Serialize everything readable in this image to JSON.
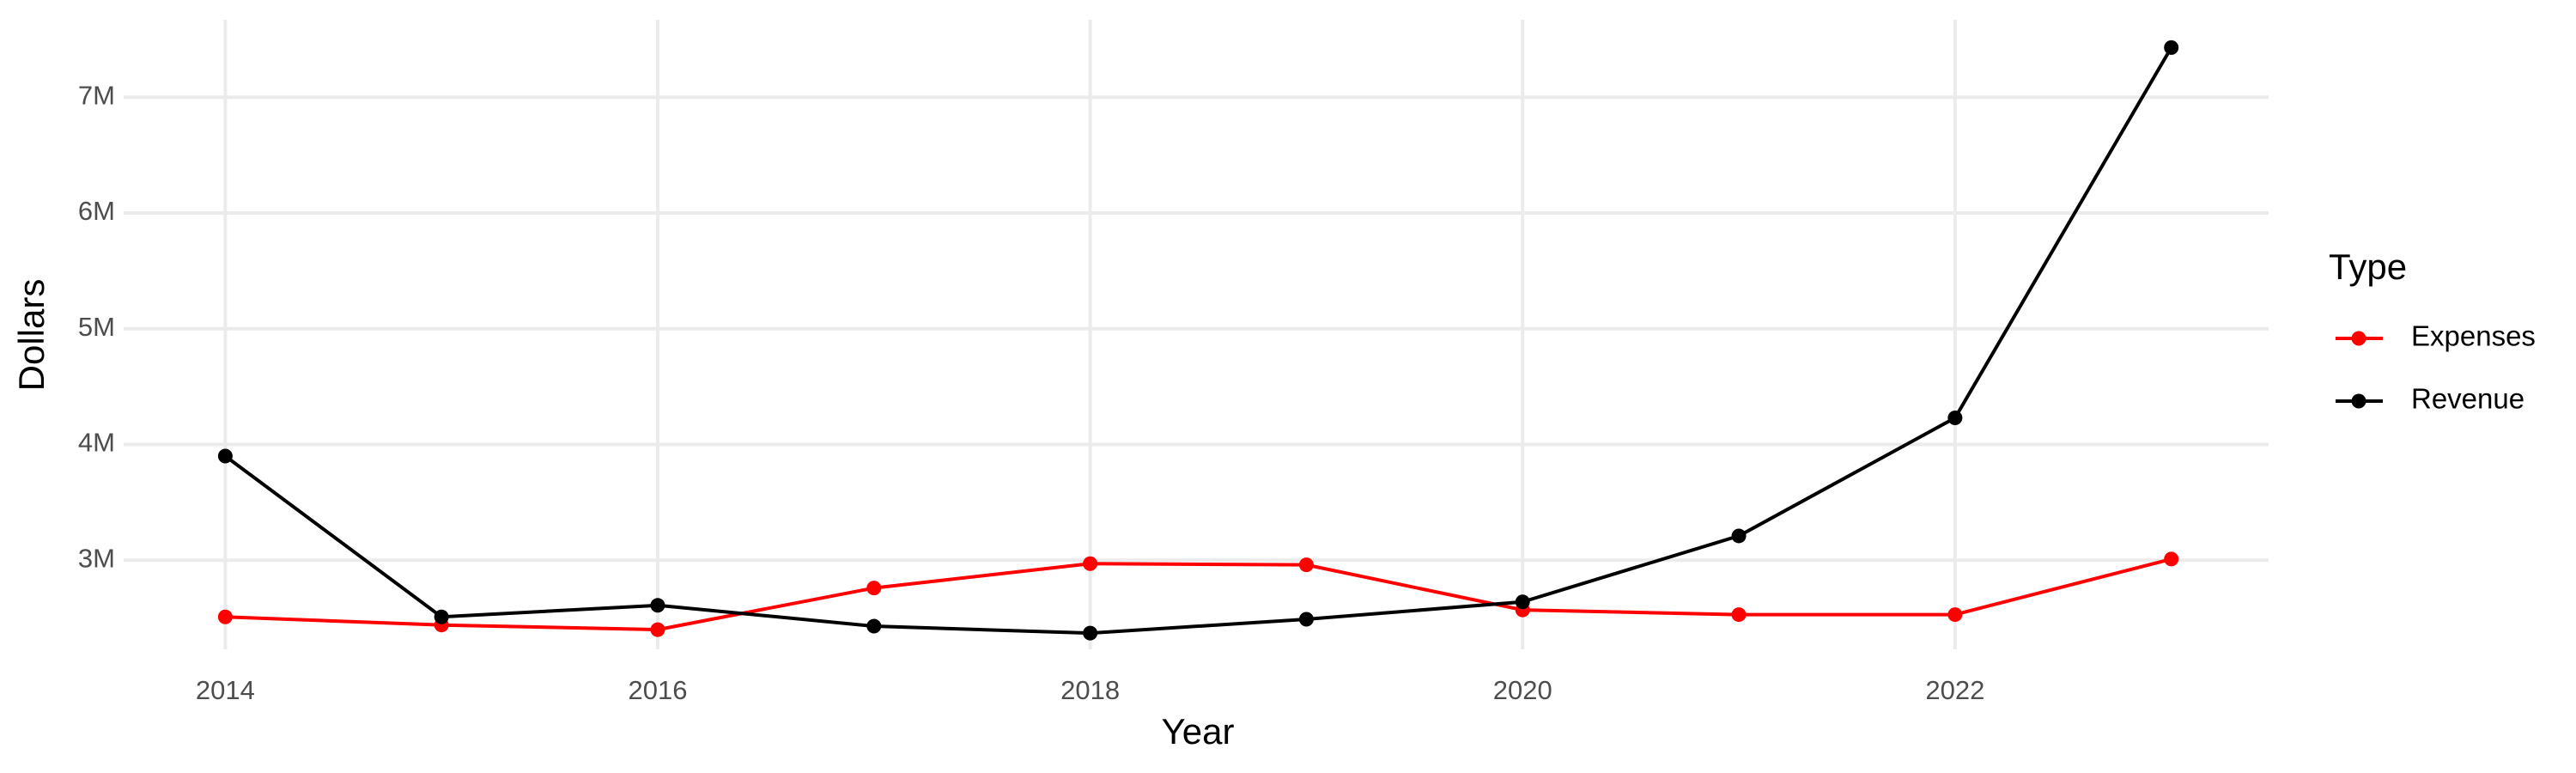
{
  "chart_data": {
    "type": "line",
    "x_label": "Year",
    "y_label": "Dollars",
    "legend_title": "Type",
    "legend": "right",
    "grid": true,
    "x": [
      2014,
      2015,
      2016,
      2017,
      2018,
      2019,
      2020,
      2021,
      2022,
      2023
    ],
    "series": [
      {
        "name": "Expenses",
        "color": "#ff0000",
        "values": [
          2510000,
          2440000,
          2400000,
          2760000,
          2970000,
          2960000,
          2570000,
          2530000,
          2530000,
          3010000
        ]
      },
      {
        "name": "Revenue",
        "color": "#000000",
        "values": [
          3900000,
          2510000,
          2610000,
          2430000,
          2370000,
          2490000,
          2640000,
          3210000,
          4230000,
          7430000
        ]
      }
    ],
    "xlim": [
      2013.53,
      2023.45
    ],
    "xticks": [
      2014,
      2016,
      2018,
      2020,
      2022
    ],
    "ylim": [
      2230000,
      7670000
    ],
    "yticks": [
      {
        "value": 3000000,
        "label": "3M"
      },
      {
        "value": 4000000,
        "label": "4M"
      },
      {
        "value": 5000000,
        "label": "5M"
      },
      {
        "value": 6000000,
        "label": "6M"
      },
      {
        "value": 7000000,
        "label": "7M"
      }
    ]
  }
}
